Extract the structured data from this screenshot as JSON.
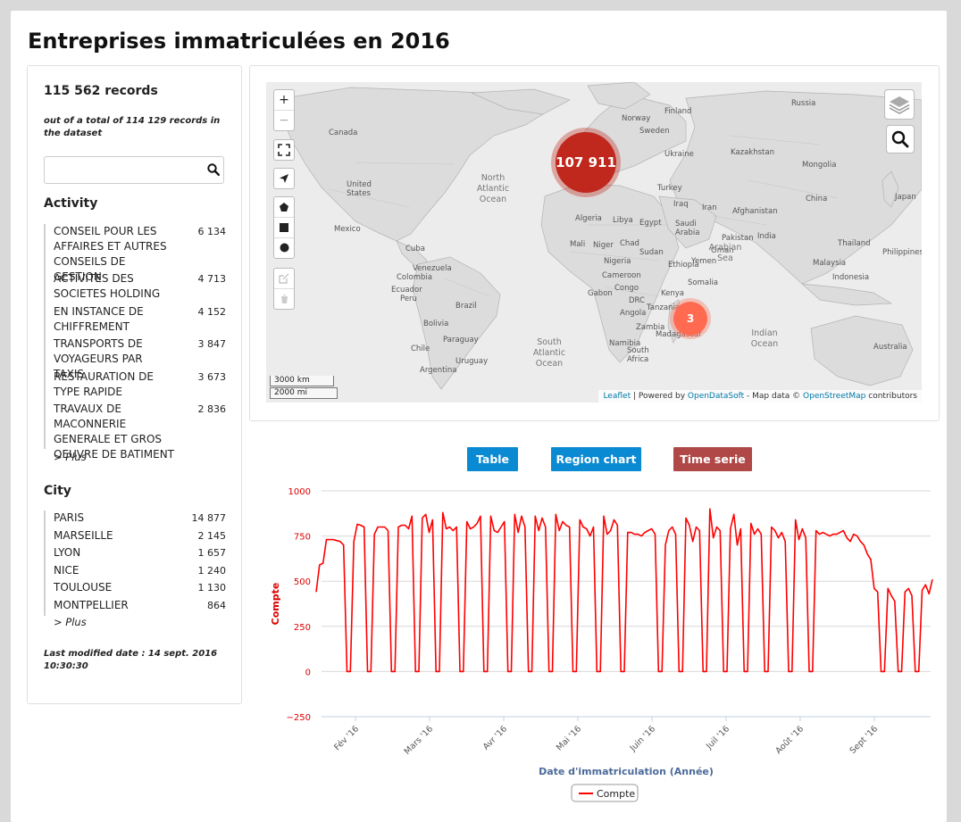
{
  "page_title": "Entreprises immatriculées en 2016",
  "sidebar": {
    "records": "115 562 records",
    "out_of": "out of a total of 114 129 records in the dataset",
    "search_placeholder": "",
    "activity_title": "Activity",
    "activity": [
      {
        "label": "CONSEIL POUR LES AFFAIRES ET AUTRES CONSEILS DE GESTION",
        "count": "6 134"
      },
      {
        "label": "ACTIVITES DES SOCIETES HOLDING",
        "count": "4 713"
      },
      {
        "label": "EN INSTANCE DE CHIFFREMENT",
        "count": "4 152"
      },
      {
        "label": "TRANSPORTS DE VOYAGEURS PAR TAXIS",
        "count": "3 847"
      },
      {
        "label": "RESTAURATION DE TYPE RAPIDE",
        "count": "3 673"
      },
      {
        "label": "TRAVAUX DE MACONNERIE GENERALE ET GROS OEUVRE DE BATIMENT",
        "count": "2 836"
      }
    ],
    "activity_more": "> Plus",
    "city_title": "City",
    "city": [
      {
        "label": "PARIS",
        "count": "14 877"
      },
      {
        "label": "MARSEILLE",
        "count": "2 145"
      },
      {
        "label": "LYON",
        "count": "1 657"
      },
      {
        "label": "NICE",
        "count": "1 240"
      },
      {
        "label": "TOULOUSE",
        "count": "1 130"
      },
      {
        "label": "MONTPELLIER",
        "count": "864"
      }
    ],
    "city_more": "> Plus",
    "modified": "Last modified date : 14 sept. 2016 10:30:30"
  },
  "map": {
    "zoom_in": "+",
    "zoom_out": "−",
    "clusters": [
      {
        "label": "107 911",
        "color": "#c0281e"
      },
      {
        "label": "3",
        "color": "#ff6a50"
      }
    ],
    "scale_km": "3000 km",
    "scale_mi": "2000 mi",
    "attribution": {
      "leaflet": "Leaflet",
      "powered": " | Powered by ",
      "ods": "OpenDataSoft",
      "mapdata": " - Map data © ",
      "osm": "OpenStreetMap",
      "contrib": " contributors"
    },
    "labels": [
      "Russia",
      "Canada",
      "United States",
      "Mexico",
      "Venezuela",
      "Colombia",
      "Peru",
      "Brazil",
      "Bolivia",
      "Chile",
      "Argentina",
      "Algeria",
      "Libya",
      "Egypt",
      "Mali",
      "Niger",
      "Sudan",
      "Ethiopia",
      "Nigeria",
      "Kenya",
      "Angola",
      "Namibia",
      "South Africa",
      "Saudi Arabia",
      "Iran",
      "Iraq",
      "Turkey",
      "Kazakhstan",
      "Mongolia",
      "China",
      "India",
      "Japan",
      "Indonesia",
      "Australia",
      "Pakistan",
      "Afghanistan",
      "Thailand",
      "Philippines",
      "Malaysia",
      "Norway",
      "Sweden",
      "Finland",
      "Ukraine",
      "Cuba",
      "Ecuador",
      "Paraguay",
      "Uruguay",
      "Tanzania",
      "Zambia",
      "Madagascar",
      "Oman",
      "Yemen",
      "Somalia",
      "Chad",
      "Cameroon",
      "Gabon",
      "Congo",
      "DRC"
    ],
    "oceans": [
      "North Atlantic Ocean",
      "South Atlantic Ocean",
      "Indian Ocean",
      "Arabian Sea"
    ]
  },
  "buttons": {
    "table": "Table",
    "region": "Region chart",
    "time": "Time serie",
    "table_color": "#0a8ad2",
    "region_color": "#0a8ad2",
    "time_color": "#b04848"
  },
  "chart_data": {
    "type": "line",
    "ylabel": "Compte",
    "xlabel": "Date d'immatriculation (Année)",
    "ylim": [
      -250,
      1000
    ],
    "yticks": [
      "1000",
      "750",
      "500",
      "250",
      "0",
      "−250"
    ],
    "xticks": [
      "Fév '16",
      "Mars '16",
      "Avr '16",
      "Mai '16",
      "Juin '16",
      "Juil '16",
      "Août '16",
      "Sept '16"
    ],
    "legend": "Compte",
    "color": "#ff0000",
    "grid": true,
    "series": [
      {
        "name": "Compte",
        "pattern": "daily registrations; weekdays ~700–900, weekends drop to 0",
        "values": [
          440,
          590,
          600,
          730,
          730,
          730,
          725,
          720,
          700,
          0,
          0,
          720,
          815,
          810,
          800,
          0,
          0,
          760,
          800,
          800,
          800,
          780,
          0,
          0,
          800,
          810,
          810,
          790,
          860,
          0,
          0,
          850,
          870,
          770,
          840,
          0,
          0,
          880,
          790,
          800,
          780,
          800,
          0,
          0,
          830,
          790,
          800,
          820,
          860,
          0,
          0,
          860,
          780,
          770,
          800,
          830,
          0,
          0,
          870,
          770,
          860,
          800,
          0,
          0,
          860,
          780,
          850,
          800,
          0,
          0,
          870,
          780,
          830,
          810,
          800,
          0,
          0,
          840,
          800,
          790,
          750,
          800,
          0,
          0,
          860,
          760,
          780,
          840,
          810,
          0,
          0,
          770,
          770,
          760,
          760,
          750,
          770,
          780,
          790,
          760,
          0,
          0,
          700,
          780,
          800,
          760,
          0,
          0,
          850,
          810,
          720,
          800,
          780,
          0,
          0,
          900,
          740,
          800,
          780,
          0,
          0,
          790,
          870,
          700,
          790,
          0,
          0,
          820,
          760,
          790,
          760,
          0,
          0,
          800,
          780,
          740,
          770,
          720,
          0,
          0,
          840,
          730,
          790,
          740,
          0,
          0,
          780,
          760,
          770,
          760,
          750,
          760,
          760,
          770,
          780,
          740,
          720,
          760,
          750,
          720,
          700,
          650,
          620,
          460,
          440,
          0,
          0,
          460,
          420,
          390,
          0,
          0,
          440,
          460,
          420,
          0,
          0,
          450,
          480,
          430,
          510
        ]
      }
    ]
  }
}
